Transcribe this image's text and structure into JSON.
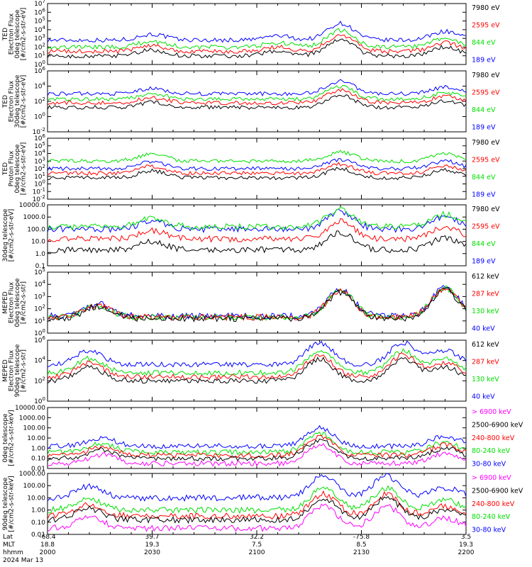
{
  "colors": {
    "blue": "#0000ff",
    "red": "#ff0000",
    "green": "#00e000",
    "black": "#000000",
    "magenta": "#ff00ff"
  },
  "chart_data": [
    {
      "type": "line",
      "scale": "log",
      "ylim_exp": [
        0,
        7
      ],
      "ytick_labels": [
        "10^7",
        "10^6",
        "10^5",
        "10^4",
        "10^3",
        "10^2",
        "10^1",
        "10^0"
      ],
      "ylabel": [
        "TED",
        "Electron Flux",
        "0deg telescope",
        "[#/cm2-s-str-eV]"
      ],
      "series": [
        {
          "name": "7980 eV",
          "color": "#000000",
          "level": 1.0
        },
        {
          "name": "2595 eV",
          "color": "#ff0000",
          "level": 1.5
        },
        {
          "name": "844 eV",
          "color": "#00e000",
          "level": 2.0
        },
        {
          "name": "189 eV",
          "color": "#0000ff",
          "level": 2.8
        }
      ],
      "features": [
        [
          0.25,
          0.8,
          0.6
        ],
        [
          0.55,
          0.6,
          0.6
        ],
        [
          0.7,
          1.6,
          1.5
        ],
        [
          0.95,
          1.2,
          0.6
        ]
      ]
    },
    {
      "type": "line",
      "scale": "log",
      "ylim_exp": [
        -2,
        6
      ],
      "ytick_labels": [
        "10^6",
        "10^4",
        "10^2",
        "10^0",
        "10^-2"
      ],
      "ylabel": [
        "TED",
        "Electron Flux",
        "30deg telescope",
        "[#/cm2-s-str-eV]"
      ],
      "series": [
        {
          "name": "7980 eV",
          "color": "#000000",
          "level": 1.2
        },
        {
          "name": "2595 eV",
          "color": "#ff0000",
          "level": 1.8
        },
        {
          "name": "844 eV",
          "color": "#00e000",
          "level": 2.3
        },
        {
          "name": "189 eV",
          "color": "#0000ff",
          "level": 3.0
        }
      ],
      "features": [
        [
          0.25,
          0.8,
          0.6
        ],
        [
          0.7,
          1.4,
          1.5
        ],
        [
          0.95,
          1.0,
          0.6
        ]
      ]
    },
    {
      "type": "line",
      "scale": "log",
      "ylim_exp": [
        -2,
        6
      ],
      "ytick_labels": [
        "10^6",
        "10^5",
        "10^4",
        "10^3",
        "10^2",
        "10^1",
        "10^0",
        "10^-1",
        "10^-2"
      ],
      "ylabel": [
        "TED",
        "Proton Flux",
        "0deg telescope",
        "[#/cm2-s-str-eV]"
      ],
      "series": [
        {
          "name": "7980 eV",
          "color": "#000000",
          "level": 0.8
        },
        {
          "name": "2595 eV",
          "color": "#ff0000",
          "level": 1.4
        },
        {
          "name": "844 eV",
          "color": "#00e000",
          "level": 3.0
        },
        {
          "name": "189 eV",
          "color": "#0000ff",
          "level": 2.0
        }
      ],
      "features": [
        [
          0.25,
          1.0,
          0.8
        ],
        [
          0.7,
          1.0,
          1.5
        ],
        [
          0.95,
          1.2,
          0.6
        ]
      ]
    },
    {
      "type": "line",
      "scale": "log",
      "ylim_exp": [
        -1,
        4
      ],
      "ytick_labels": [
        "10000.0",
        "1000.0",
        "100.0",
        "10.0",
        "1.0",
        "0.1"
      ],
      "ylabel": [
        "30deg telescope",
        "[#/cm2-s-str-eV]"
      ],
      "series": [
        {
          "name": "7980 eV",
          "color": "#000000",
          "level": 0.3
        },
        {
          "name": "2595 eV",
          "color": "#ff0000",
          "level": 1.2
        },
        {
          "name": "844 eV",
          "color": "#00e000",
          "level": 2.2
        },
        {
          "name": "189 eV",
          "color": "#0000ff",
          "level": 2.0
        }
      ],
      "features": [
        [
          0.25,
          0.8,
          0.6
        ],
        [
          0.7,
          1.2,
          1.5
        ],
        [
          0.95,
          1.2,
          0.6
        ]
      ]
    },
    {
      "type": "line",
      "scale": "log",
      "ylim_exp": [
        0,
        5
      ],
      "ytick_labels": [
        "10^5",
        "10^4",
        "10^3",
        "10^2",
        "10^1",
        "10^0"
      ],
      "ylabel": [
        "MEPED",
        "Electron Flux",
        "0deg telescope",
        "[#/cm2-s-str]"
      ],
      "series": [
        {
          "name": "612 keV",
          "color": "#000000",
          "level": 1.2
        },
        {
          "name": "287 keV",
          "color": "#ff0000",
          "level": 1.3
        },
        {
          "name": "130 keV",
          "color": "#00e000",
          "level": 1.3
        },
        {
          "name": "40 keV",
          "color": "#0000ff",
          "level": 1.4
        }
      ],
      "features": [
        [
          0.12,
          1.2,
          0.6
        ],
        [
          0.7,
          1.8,
          1.5
        ],
        [
          0.95,
          2.8,
          0.6
        ]
      ]
    },
    {
      "type": "line",
      "scale": "log",
      "ylim_exp": [
        0,
        6
      ],
      "ytick_labels": [
        "10^6",
        "10^4",
        "10^2",
        "10^0"
      ],
      "ylabel": [
        "MEPED",
        "Electron Flux",
        "90deg telescope",
        "[#/cm2-s-str]"
      ],
      "series": [
        {
          "name": "612 keV",
          "color": "#000000",
          "level": 2.0
        },
        {
          "name": "287 keV",
          "color": "#ff0000",
          "level": 2.4
        },
        {
          "name": "130 keV",
          "color": "#00e000",
          "level": 2.8
        },
        {
          "name": "40 keV",
          "color": "#0000ff",
          "level": 3.6
        }
      ],
      "features": [
        [
          0.1,
          1.5,
          0.8
        ],
        [
          0.65,
          2.0,
          1.2
        ],
        [
          0.85,
          2.0,
          1.2
        ],
        [
          0.95,
          1.5,
          0.8
        ]
      ]
    },
    {
      "type": "line",
      "scale": "log",
      "ylim_exp": [
        -2,
        4
      ],
      "ytick_labels": [
        "10000.00",
        "1000.00",
        "100.00",
        "10.00",
        "1.00",
        "0.10",
        "0.01"
      ],
      "ylabel": [
        "0deg telescope",
        "[#/cm2-s-str-keV]"
      ],
      "series": [
        {
          "name": "> 6900 keV",
          "color": "#ff00ff",
          "level": -1.5
        },
        {
          "name": "2500-6900 keV",
          "color": "#000000",
          "level": -1.0
        },
        {
          "name": "240-800 keV",
          "color": "#ff0000",
          "level": -0.7
        },
        {
          "name": "80-240 keV",
          "color": "#00e000",
          "level": -0.4
        },
        {
          "name": "30-80 keV",
          "color": "#0000ff",
          "level": 0.2
        }
      ],
      "features": [
        [
          0.13,
          1.0,
          0.6
        ],
        [
          0.65,
          1.5,
          1.5
        ],
        [
          0.95,
          1.2,
          0.6
        ]
      ]
    },
    {
      "type": "line",
      "scale": "log",
      "ylim_exp": [
        -2,
        3
      ],
      "ytick_labels": [
        "1000.00",
        "100.00",
        "10.00",
        "1.00",
        "0.10",
        "0.01"
      ],
      "ylabel": [
        "90deg telescope",
        "[#/cm2-s-str-keV]"
      ],
      "series": [
        {
          "name": "> 6900 keV",
          "color": "#ff00ff",
          "level": -1.5
        },
        {
          "name": "2500-6900 keV",
          "color": "#000000",
          "level": -0.8
        },
        {
          "name": "240-800 keV",
          "color": "#ff0000",
          "level": -0.5
        },
        {
          "name": "80-240 keV",
          "color": "#00e000",
          "level": 0.0
        },
        {
          "name": "30-80 keV",
          "color": "#0000ff",
          "level": 1.0
        }
      ],
      "features": [
        [
          0.1,
          1.0,
          0.8
        ],
        [
          0.66,
          1.5,
          1.5
        ],
        [
          0.81,
          1.5,
          1.5
        ],
        [
          0.95,
          1.0,
          0.6
        ]
      ]
    }
  ],
  "x_axis": {
    "rows": [
      {
        "label": "Lat",
        "values": [
          "-68.4",
          "39.7",
          "32.2",
          "-75.8",
          "3.5"
        ]
      },
      {
        "label": "MLT",
        "values": [
          "18.8",
          "19.3",
          "7.5",
          "8.5",
          "19.3"
        ]
      },
      {
        "label": "hhmm",
        "values": [
          "2000",
          "2030",
          "2100",
          "2130",
          "2200"
        ]
      }
    ],
    "date": "2024 Mar 13"
  }
}
